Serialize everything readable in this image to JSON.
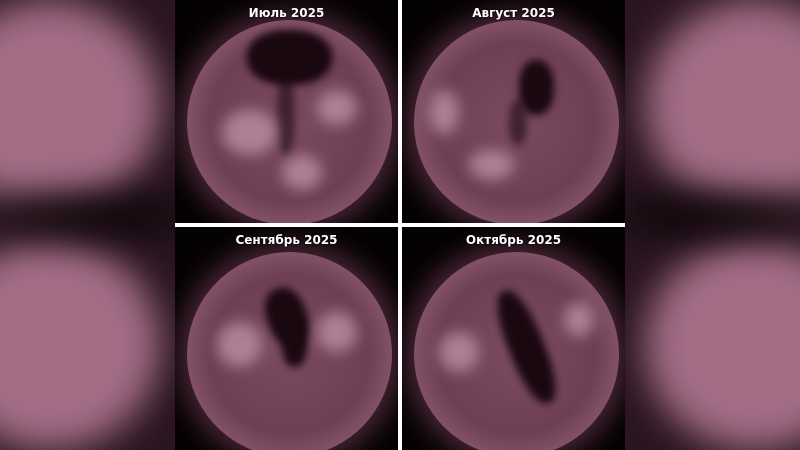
{
  "panels": [
    {
      "label": "Июль 2025"
    },
    {
      "label": "Август 2025"
    },
    {
      "label": "Сентябрь 2025"
    },
    {
      "label": "Октябрь 2025"
    }
  ],
  "colors": {
    "divider": "#ffffff",
    "background": "#050203",
    "sun_tint": "#8c5a70"
  }
}
